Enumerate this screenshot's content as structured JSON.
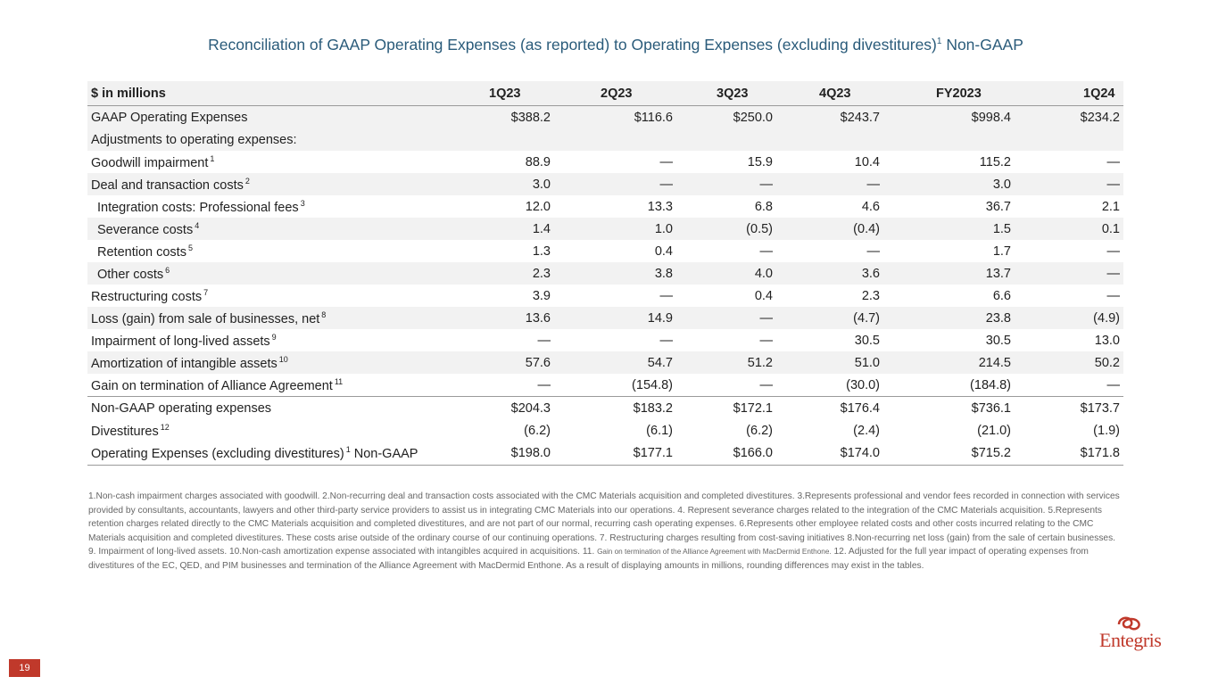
{
  "title": {
    "main": "Reconciliation of GAAP Operating Expenses (as reported) to Operating Expenses (excluding divestitures)",
    "sup": "1",
    "tail": " Non-GAAP"
  },
  "table": {
    "headers": [
      "$ in millions",
      "1Q23",
      "2Q23",
      "3Q23",
      "4Q23",
      "FY2023",
      "1Q24"
    ],
    "rows": [
      {
        "label": "GAAP Operating Expenses",
        "sup": "",
        "values": [
          "$388.2",
          "$116.6",
          "$250.0",
          "$243.7",
          "$998.4",
          "$234.2"
        ]
      },
      {
        "label": "Adjustments to operating expenses:",
        "sup": "",
        "values": [
          "",
          "",
          "",
          "",
          "",
          ""
        ]
      },
      {
        "label": "Goodwill impairment",
        "sup": "1",
        "values": [
          "88.9",
          "—",
          "15.9",
          "10.4",
          "115.2",
          "—"
        ]
      },
      {
        "label": "Deal and transaction costs",
        "sup": "2",
        "values": [
          "3.0",
          "—",
          "—",
          "—",
          "3.0",
          "—"
        ]
      },
      {
        "label": "Integration costs: Professional fees",
        "sup": "3",
        "values": [
          "12.0",
          "13.3",
          "6.8",
          "4.6",
          "36.7",
          "2.1"
        ]
      },
      {
        "label": "Severance costs",
        "sup": "4",
        "values": [
          "1.4",
          "1.0",
          "(0.5)",
          "(0.4)",
          "1.5",
          "0.1"
        ]
      },
      {
        "label": "Retention costs",
        "sup": "5",
        "values": [
          "1.3",
          "0.4",
          "—",
          "—",
          "1.7",
          "—"
        ]
      },
      {
        "label": "Other costs",
        "sup": "6",
        "values": [
          "2.3",
          "3.8",
          "4.0",
          "3.6",
          "13.7",
          "—"
        ]
      },
      {
        "label": "Restructuring costs",
        "sup": "7",
        "values": [
          "3.9",
          "—",
          "0.4",
          "2.3",
          "6.6",
          "—"
        ]
      },
      {
        "label": "Loss (gain) from sale of businesses, net",
        "sup": "8",
        "values": [
          "13.6",
          "14.9",
          "—",
          "(4.7)",
          "23.8",
          "(4.9)"
        ]
      },
      {
        "label": "Impairment of long-lived assets",
        "sup": "9",
        "values": [
          "—",
          "—",
          "—",
          "30.5",
          "30.5",
          "13.0"
        ]
      },
      {
        "label": "Amortization of intangible assets",
        "sup": "10",
        "values": [
          "57.6",
          "54.7",
          "51.2",
          "51.0",
          "214.5",
          "50.2"
        ]
      },
      {
        "label": "Gain on termination of Alliance Agreement",
        "sup": "11",
        "values": [
          "—",
          "(154.8)",
          "—",
          "(30.0)",
          "(184.8)",
          "—"
        ]
      },
      {
        "label": "Non-GAAP operating expenses",
        "sup": "",
        "values": [
          "$204.3",
          "$183.2",
          "$172.1",
          "$176.4",
          "$736.1",
          "$173.7"
        ]
      },
      {
        "label": "Divestitures",
        "sup": "12",
        "values": [
          "(6.2)",
          "(6.1)",
          "(6.2)",
          "(2.4)",
          "(21.0)",
          "(1.9)"
        ]
      },
      {
        "label": "Operating Expenses (excluding divestitures)",
        "sup": "1",
        "label_tail": " Non-GAAP",
        "values": [
          "$198.0",
          "$177.1",
          "$166.0",
          "$174.0",
          "$715.2",
          "$171.8"
        ]
      }
    ]
  },
  "footnotes": {
    "part1": "1.Non-cash impairment charges associated with goodwill.  2.Non-recurring deal and transaction costs associated with the CMC Materials acquisition and completed divestitures.  3.Represents professional and vendor fees recorded in connection with services provided by consultants, accountants, lawyers and other third-party service providers to assist us in integrating CMC Materials into our operations.  4. Represent severance charges related to the integration of the CMC Materials acquisition.  5.Represents retention charges related directly to the CMC Materials acquisition and completed divestitures, and are not part of our normal, recurring cash operating expenses.  6.Represents other employee related costs and other costs incurred relating to the CMC Materials acquisition and completed divestitures.  These costs arise outside of the ordinary course of our continuing operations. 7. Restructuring charges resulting from cost-saving initiatives  8.Non-recurring net loss (gain) from the sale of certain businesses.  9. Impairment of long-lived assets. 10.Non-cash amortization expense associated with intangibles acquired in acquisitions. 11. ",
    "part2": "Gain on termination of the Alliance Agreement with MacDermid Enthone.",
    "part3": " 12. Adjusted for the full year impact of operating expenses from divestitures of the EC, QED, and PIM businesses and termination of the Alliance Agreement with MacDermid Enthone.  As a result of displaying amounts in millions, rounding differences may exist in the tables."
  },
  "page_number": "19",
  "logo": {
    "text": "Entegris",
    "icon": "entegris-swirl-icon",
    "color": "#c0392b"
  }
}
